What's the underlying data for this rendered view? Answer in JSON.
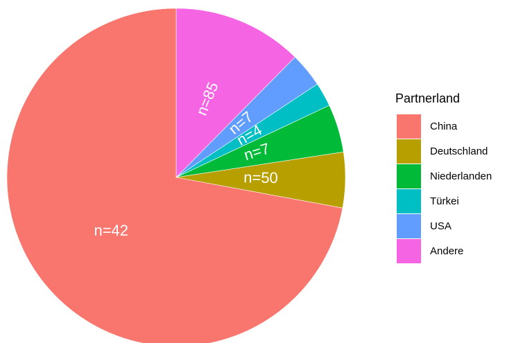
{
  "chart_data": {
    "type": "pie",
    "categories": [
      "China",
      "Deutschland",
      "Niederlanden",
      "Türkei",
      "USA",
      "Andere"
    ],
    "values": [
      72.1,
      5.3,
      4.6,
      2.3,
      3.3,
      12.4
    ],
    "colors": [
      "#F8766D",
      "#B79F00",
      "#00BA38",
      "#00BFC4",
      "#619CFF",
      "#F564E3"
    ],
    "annotations": [
      "n=42",
      "n=50",
      "n=7",
      "n=4",
      "n=7",
      "n=85"
    ],
    "legend_title": "Partnerland",
    "legend": "right"
  }
}
